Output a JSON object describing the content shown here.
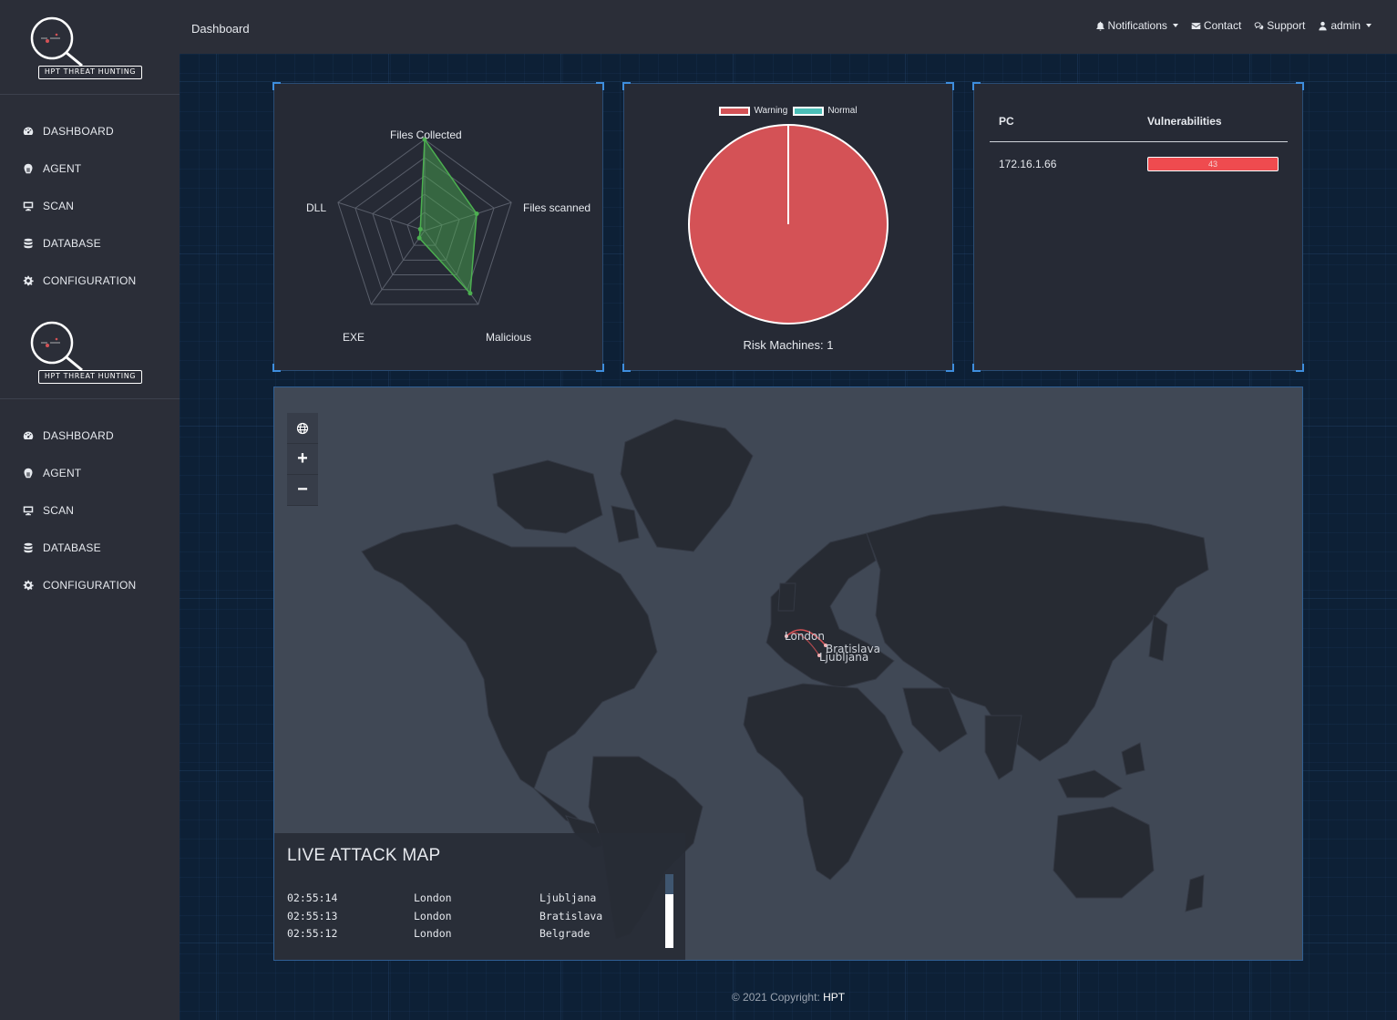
{
  "sidebar": {
    "logo_text": "HPT THREAT HUNTING",
    "menu1": [
      {
        "label": "DASHBOARD",
        "icon": "dashboard-icon"
      },
      {
        "label": "AGENT",
        "icon": "agent-icon"
      },
      {
        "label": "SCAN",
        "icon": "monitor-icon"
      },
      {
        "label": "DATABASE",
        "icon": "database-icon"
      },
      {
        "label": "CONFIGURATION",
        "icon": "gear-icon"
      }
    ],
    "menu2": [
      {
        "label": "DASHBOARD",
        "icon": "dashboard-icon"
      },
      {
        "label": "AGENT",
        "icon": "agent-icon"
      },
      {
        "label": "SCAN",
        "icon": "monitor-icon"
      },
      {
        "label": "DATABASE",
        "icon": "database-icon"
      },
      {
        "label": "CONFIGURATION",
        "icon": "gear-icon"
      }
    ]
  },
  "header": {
    "breadcrumb": "Dashboard",
    "notifications": "Notifications",
    "contact": "Contact",
    "support": "Support",
    "user": "admin"
  },
  "radar": {
    "labels": [
      "Files Collected",
      "Files scanned",
      "Malicious",
      "EXE",
      "DLL"
    ],
    "values": [
      1.0,
      0.6,
      0.85,
      0.1,
      0.05
    ],
    "color": "#4caf50"
  },
  "chart_data": {
    "type": "pie",
    "legend": [
      "Warning",
      "Normal"
    ],
    "values": [
      1,
      0
    ],
    "colors": [
      "#d45256",
      "#4bbfb8"
    ],
    "caption": "Risk Machines: 1"
  },
  "vulnerabilities": {
    "headers": [
      "PC",
      "Vulnerabilities"
    ],
    "rows": [
      {
        "pc": "172.16.1.66",
        "value": "43"
      }
    ]
  },
  "map": {
    "cities": [
      "London",
      "Bratislava",
      "Ljubljana"
    ],
    "panel_title": "LIVE ATTACK MAP",
    "attacks": [
      {
        "time": "02:55:14",
        "from": "London",
        "to": "Ljubljana"
      },
      {
        "time": "02:55:13",
        "from": "London",
        "to": "Bratislava"
      },
      {
        "time": "02:55:12",
        "from": "London",
        "to": "Belgrade"
      }
    ]
  },
  "footer": {
    "copyright": "© 2021 Copyright:",
    "brand": "HPT"
  }
}
